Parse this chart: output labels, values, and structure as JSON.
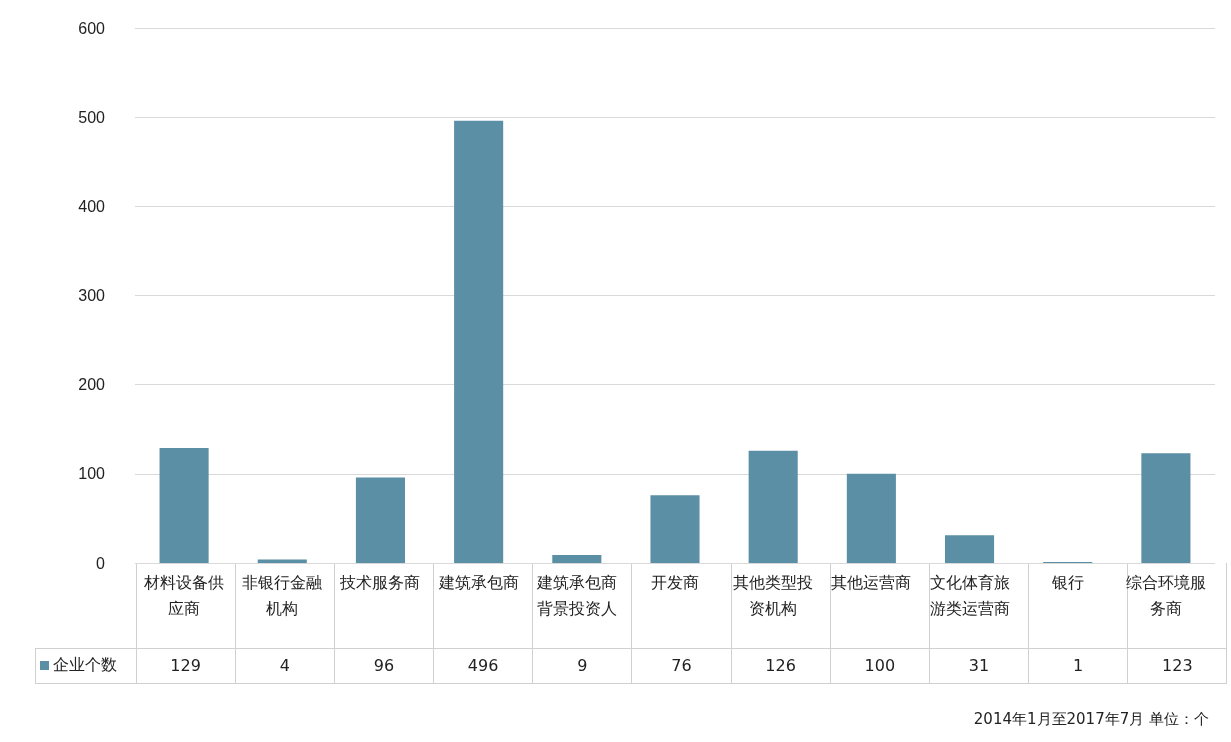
{
  "chart_data": {
    "type": "bar",
    "categories": [
      "材料设备供应商",
      "非银行金融机构",
      "技术服务商",
      "建筑承包商",
      "建筑承包商背景投资人",
      "开发商",
      "其他类型投资机构",
      "其他运营商",
      "文化体育旅游类运营商",
      "银行",
      "综合环境服务商"
    ],
    "series": [
      {
        "name": "企业个数",
        "color": "#5b8fa6",
        "values": [
          129,
          4,
          96,
          496,
          9,
          76,
          126,
          100,
          31,
          1,
          123
        ]
      }
    ],
    "ylim": [
      0,
      600
    ],
    "yticks": [
      0,
      100,
      200,
      300,
      400,
      500,
      600
    ],
    "grid": "y",
    "legend": "bottom",
    "data_labels": true,
    "annotations": [
      "2014年1月至2017年7月  单位：个"
    ]
  }
}
